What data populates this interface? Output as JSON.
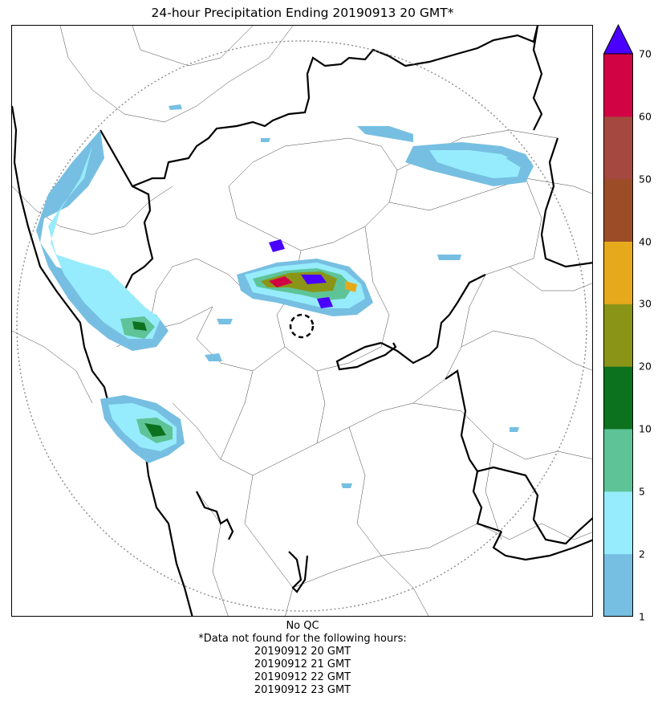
{
  "title": "24-hour Precipitation Ending 20190913 20 GMT*",
  "colorbar": {
    "ticks": [
      "1",
      "2",
      "5",
      "10",
      "20",
      "30",
      "40",
      "50",
      "60",
      "70"
    ],
    "colors": [
      "#76bfe2",
      "#96ecfc",
      "#5ec498",
      "#0d721e",
      "#8a9518",
      "#e6a91b",
      "#9c4d27",
      "#a5483f",
      "#d10345"
    ],
    "extend_color": "#4a00ff"
  },
  "footnote": {
    "qc": "No QC",
    "missing_header": "*Data not found for the following hours:",
    "missing_hours": [
      "20190912 20 GMT",
      "20190912 21 GMT",
      "20190912 22 GMT",
      "20190912 23 GMT"
    ]
  },
  "chart_data": {
    "type": "heatmap",
    "title": "24-hour Precipitation Ending 20190913 20 GMT*",
    "colorbar_levels": [
      1,
      2,
      5,
      10,
      20,
      30,
      40,
      50,
      60,
      70
    ],
    "colorbar_extend": "max",
    "map_features": [
      "radar range circle (dotted)",
      "radar site marker (dashed circle)",
      "state boundaries (thick)",
      "district boundaries (thin)",
      "coastline"
    ]
  }
}
